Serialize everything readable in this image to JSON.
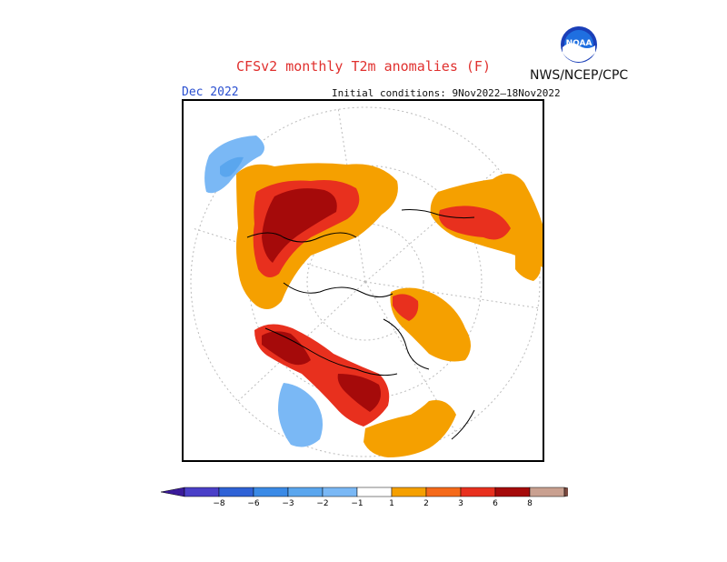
{
  "title": "CFSv2 monthly T2m anomalies (F)",
  "agency": "NWS/NCEP/CPC",
  "logo_text": "NOAA",
  "month_label": "Dec 2022",
  "initial_conditions": "Initial conditions: 9Nov2022–18Nov2022",
  "colorbar": {
    "ticks": [
      "−8",
      "−6",
      "−3",
      "−2",
      "−1",
      "1",
      "2",
      "3",
      "6",
      "8"
    ],
    "colors": {
      "below_min": "#3a1a9a",
      "b1": "#4a3fc8",
      "b2": "#2f62d6",
      "b3": "#3a8ae6",
      "b4": "#5aa6ee",
      "b5": "#7ab8f5",
      "neutral": "#ffffff",
      "r1": "#f5a000",
      "r2": "#f56a1a",
      "r3": "#e8301e",
      "r4": "#a50a0a",
      "r5": "#c9a090",
      "above_max": "#7a4a40"
    }
  }
}
